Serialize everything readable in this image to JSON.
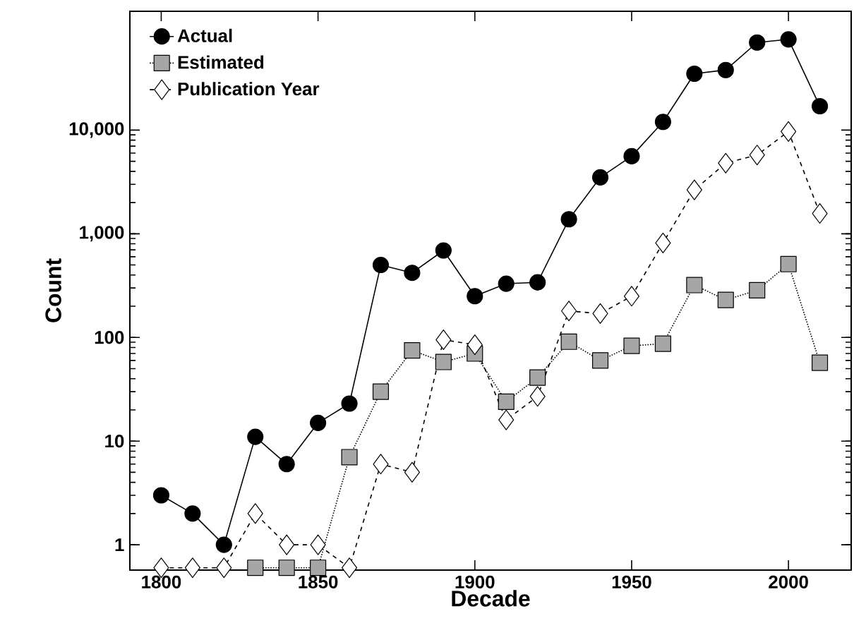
{
  "chart_data": {
    "type": "line",
    "xlabel": "Decade",
    "ylabel": "Count",
    "log": "y",
    "legend": "top left",
    "grid": false,
    "x": [
      1800,
      1810,
      1820,
      1830,
      1840,
      1850,
      1860,
      1870,
      1880,
      1890,
      1900,
      1910,
      1920,
      1930,
      1940,
      1950,
      1960,
      1970,
      1980,
      1990,
      2000,
      2010
    ],
    "xlim": [
      1790,
      2020
    ],
    "xticks": [
      1800,
      1850,
      1900,
      1950,
      2000
    ],
    "ylim": [
      0.57,
      140000
    ],
    "yticks": [
      1,
      10,
      100,
      {
        "value": 1000,
        "label": "1,000"
      },
      {
        "value": 10000,
        "label": "10,000"
      }
    ],
    "series": [
      {
        "name": "Actual",
        "color": "#000000",
        "marker": "circle",
        "line_style": "solid",
        "values": [
          3,
          2,
          1,
          11,
          6,
          15,
          23,
          500,
          420,
          690,
          250,
          330,
          340,
          1380,
          3500,
          5600,
          12000,
          35000,
          38000,
          70000,
          75000,
          17000
        ]
      },
      {
        "name": "Estimated",
        "color": "#a6a6a6",
        "marker": "square",
        "line_style": "dotted",
        "values": [
          null,
          null,
          null,
          0.6,
          0.6,
          0.6,
          7,
          30,
          75,
          58,
          70,
          24,
          41,
          91,
          60,
          83,
          87,
          320,
          230,
          285,
          510,
          57
        ]
      },
      {
        "name": "Publication Year",
        "color": "#ffffff",
        "marker": "diamond",
        "line_style": "dashed",
        "values": [
          0.6,
          0.6,
          0.6,
          2,
          1,
          1,
          0.6,
          6,
          5,
          95,
          85,
          16,
          27,
          180,
          170,
          250,
          815,
          2650,
          4800,
          5750,
          9700,
          1570
        ]
      }
    ]
  }
}
